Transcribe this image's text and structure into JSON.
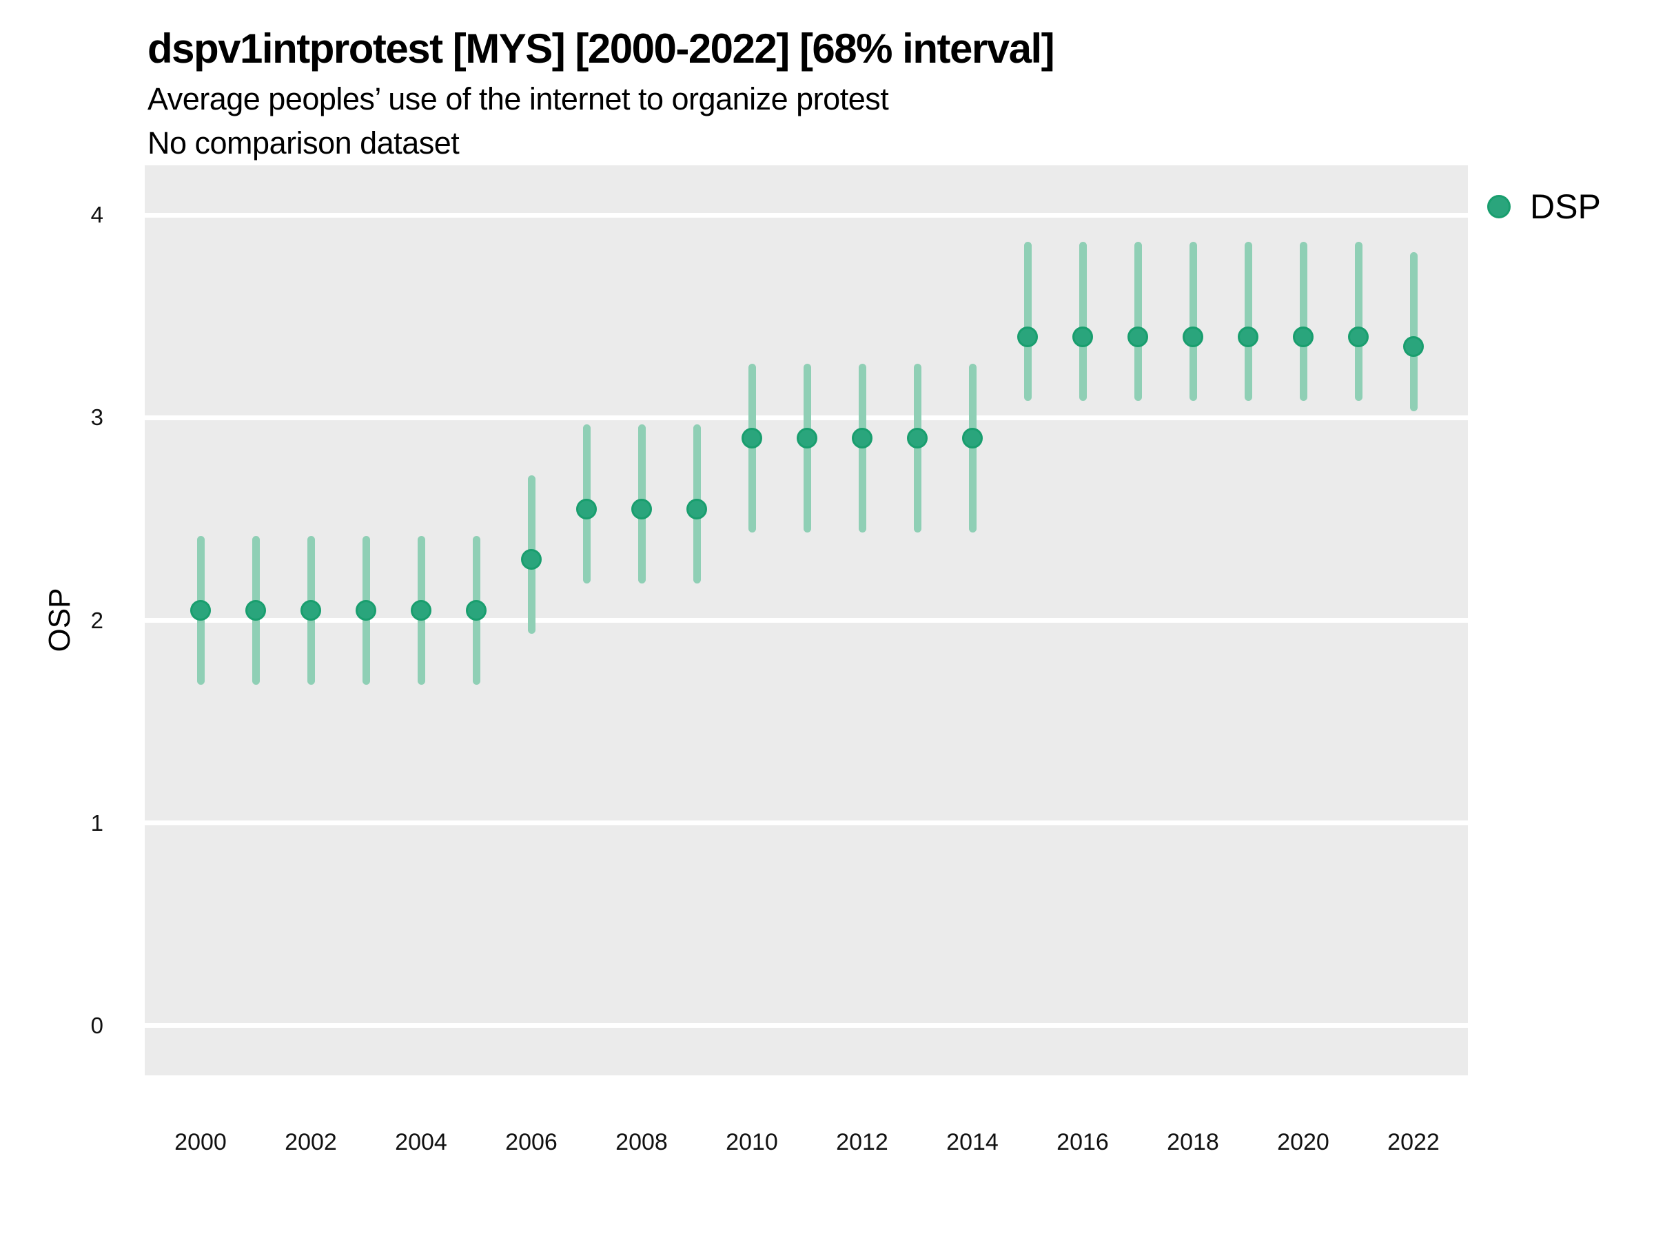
{
  "header": {
    "title": "dspv1intprotest [MYS] [2000-2022] [68% interval]",
    "subtitle": "Average peoples’ use of the internet to organize protest",
    "note": "No comparison dataset"
  },
  "colors": {
    "panel_bg": "#EBEBEB",
    "gridline": "#FFFFFF",
    "point_fill": "#2AA57C",
    "point_stroke": "#199E6E",
    "errorbar": "#8FCFB5",
    "text": "#000000"
  },
  "chart_data": {
    "type": "scatter",
    "title": "dspv1intprotest [MYS] [2000-2022] [68% interval]",
    "subtitle": "Average peoples’ use of the internet to organize protest",
    "note": "No comparison dataset",
    "xlabel": "",
    "ylabel": "OSP",
    "interval": "68%",
    "grid": "horizontal-major-only",
    "legend_position": "right-top",
    "legend": [
      {
        "label": "DSP",
        "color": "#2AA57C"
      }
    ],
    "ylim": [
      -0.245,
      4.245
    ],
    "yticks": [
      0,
      1,
      2,
      3,
      4
    ],
    "xticks": [
      2000,
      2002,
      2004,
      2006,
      2008,
      2010,
      2012,
      2014,
      2016,
      2018,
      2020,
      2022
    ],
    "x_range": [
      2000,
      2022
    ],
    "series": [
      {
        "name": "DSP",
        "points": [
          {
            "year": 2000,
            "value": 2.05,
            "low": 1.7,
            "high": 2.4
          },
          {
            "year": 2001,
            "value": 2.05,
            "low": 1.7,
            "high": 2.4
          },
          {
            "year": 2002,
            "value": 2.05,
            "low": 1.7,
            "high": 2.4
          },
          {
            "year": 2003,
            "value": 2.05,
            "low": 1.7,
            "high": 2.4
          },
          {
            "year": 2004,
            "value": 2.05,
            "low": 1.7,
            "high": 2.4
          },
          {
            "year": 2005,
            "value": 2.05,
            "low": 1.7,
            "high": 2.4
          },
          {
            "year": 2006,
            "value": 2.3,
            "low": 1.95,
            "high": 2.7
          },
          {
            "year": 2007,
            "value": 2.55,
            "low": 2.2,
            "high": 2.95
          },
          {
            "year": 2008,
            "value": 2.55,
            "low": 2.2,
            "high": 2.95
          },
          {
            "year": 2009,
            "value": 2.55,
            "low": 2.2,
            "high": 2.95
          },
          {
            "year": 2010,
            "value": 2.9,
            "low": 2.45,
            "high": 3.25
          },
          {
            "year": 2011,
            "value": 2.9,
            "low": 2.45,
            "high": 3.25
          },
          {
            "year": 2012,
            "value": 2.9,
            "low": 2.45,
            "high": 3.25
          },
          {
            "year": 2013,
            "value": 2.9,
            "low": 2.45,
            "high": 3.25
          },
          {
            "year": 2014,
            "value": 2.9,
            "low": 2.45,
            "high": 3.25
          },
          {
            "year": 2015,
            "value": 3.4,
            "low": 3.1,
            "high": 3.85
          },
          {
            "year": 2016,
            "value": 3.4,
            "low": 3.1,
            "high": 3.85
          },
          {
            "year": 2017,
            "value": 3.4,
            "low": 3.1,
            "high": 3.85
          },
          {
            "year": 2018,
            "value": 3.4,
            "low": 3.1,
            "high": 3.85
          },
          {
            "year": 2019,
            "value": 3.4,
            "low": 3.1,
            "high": 3.85
          },
          {
            "year": 2020,
            "value": 3.4,
            "low": 3.1,
            "high": 3.85
          },
          {
            "year": 2021,
            "value": 3.4,
            "low": 3.1,
            "high": 3.85
          },
          {
            "year": 2022,
            "value": 3.35,
            "low": 3.05,
            "high": 3.8
          }
        ]
      }
    ]
  }
}
